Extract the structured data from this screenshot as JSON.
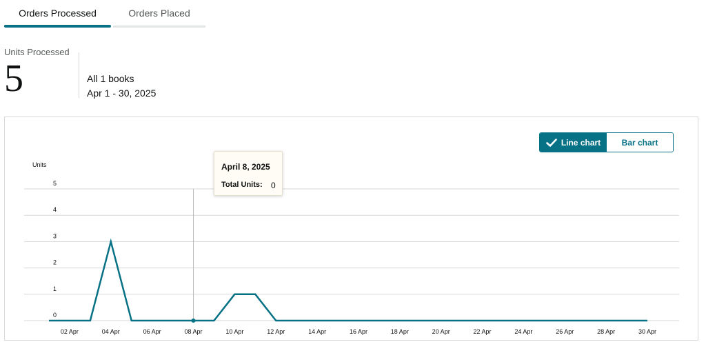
{
  "tabs": {
    "orders_processed": "Orders Processed",
    "orders_placed": "Orders Placed"
  },
  "summary": {
    "label": "Units Processed",
    "value": "5",
    "scope": "All 1 books",
    "range": "Apr 1 - 30, 2025"
  },
  "toggle": {
    "line_chart": "Line chart",
    "bar_chart": "Bar chart",
    "selected": "Line chart"
  },
  "tooltip": {
    "date": "April 8, 2025",
    "label": "Total Units:",
    "value": "0"
  },
  "colors": {
    "accent": "#077185",
    "grid": "#d5d9d9",
    "text_muted": "#565959"
  },
  "chart_data": {
    "type": "line",
    "ylabel": "Units",
    "xlabel": "",
    "title": "",
    "ylim": [
      0,
      5
    ],
    "yticks": [
      0,
      1,
      2,
      3,
      4,
      5
    ],
    "x": [
      "01 Apr",
      "02 Apr",
      "03 Apr",
      "04 Apr",
      "05 Apr",
      "06 Apr",
      "07 Apr",
      "08 Apr",
      "09 Apr",
      "10 Apr",
      "11 Apr",
      "12 Apr",
      "13 Apr",
      "14 Apr",
      "15 Apr",
      "16 Apr",
      "17 Apr",
      "18 Apr",
      "19 Apr",
      "20 Apr",
      "21 Apr",
      "22 Apr",
      "23 Apr",
      "24 Apr",
      "25 Apr",
      "26 Apr",
      "27 Apr",
      "28 Apr",
      "29 Apr",
      "30 Apr"
    ],
    "xtick_labels": [
      "02 Apr",
      "04 Apr",
      "06 Apr",
      "08 Apr",
      "10 Apr",
      "12 Apr",
      "14 Apr",
      "16 Apr",
      "18 Apr",
      "20 Apr",
      "22 Apr",
      "24 Apr",
      "26 Apr",
      "28 Apr",
      "30 Apr"
    ],
    "series": [
      {
        "values": [
          0,
          0,
          0,
          3,
          0,
          0,
          0,
          0,
          0,
          1,
          1,
          0,
          0,
          0,
          0,
          0,
          0,
          0,
          0,
          0,
          0,
          0,
          0,
          0,
          0,
          0,
          0,
          0,
          0,
          0
        ]
      }
    ],
    "highlight": {
      "x": "08 Apr",
      "value": 0
    },
    "grid": true,
    "legend": "none"
  }
}
